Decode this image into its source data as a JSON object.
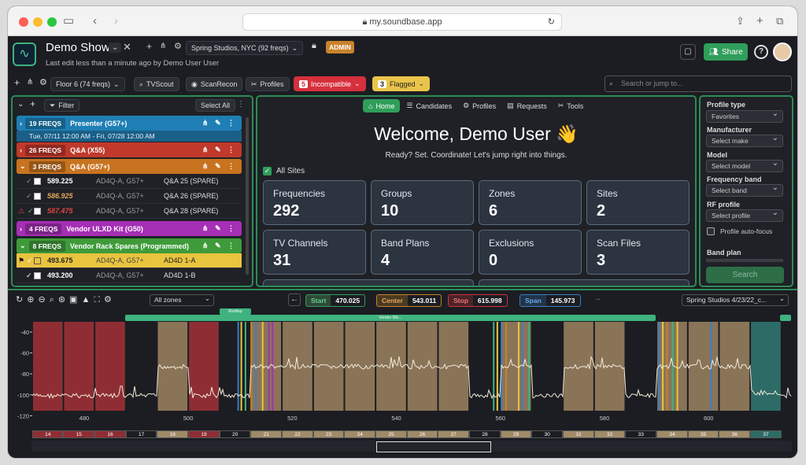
{
  "browser": {
    "url": "my.soundbase.app"
  },
  "app": {
    "title": "Demo Show",
    "subtitle": "Last edit less than a minute ago by Demo User User",
    "venue": "Spring Studios, NYC (92 freqs)",
    "role_badge": "ADMIN",
    "share_label": "Share"
  },
  "toolbar": {
    "floor": "Floor 6 (74 freqs)",
    "tvscout": "TVScout",
    "scanrecon": "ScanRecon",
    "profiles": "Profiles",
    "incompatible_count": "5",
    "incompatible_label": "Incompatible",
    "flagged_count": "3",
    "flagged_label": "Flagged",
    "search_placeholder": "Search or jump to..."
  },
  "freqlist": {
    "filter_label": "Filter",
    "select_all": "Select All",
    "groups": [
      {
        "count": "19 FREQS",
        "name": "Presenter (G57+)",
        "color": "#1f7fb5",
        "sub": "Tue, 07/11 12:00 AM - Fri, 07/28 12:00 AM"
      },
      {
        "count": "26 FREQS",
        "name": "Q&A (X55)",
        "color": "#c0392b"
      },
      {
        "count": "3 FREQS",
        "name": "Q&A (G57+)",
        "color": "#c8731f"
      },
      {
        "count": "4 FREQS",
        "name": "Vendor ULXD Kit (G50)",
        "color": "#a52fb5"
      },
      {
        "count": "8 FREQS",
        "name": "Vendor Rack Spares (Programmed)",
        "color": "#3f9b3a"
      }
    ],
    "rows": [
      {
        "freq": "589.225",
        "model": "AD4Q-A, G57+",
        "name": "Q&A 25 (SPARE)"
      },
      {
        "freq": "586.925",
        "model": "AD4Q-A, G57+",
        "name": "Q&A 26 (SPARE)"
      },
      {
        "freq": "587.475",
        "model": "AD4Q-A, G57+",
        "name": "Q&A 28 (SPARE)"
      },
      {
        "freq": "493.675",
        "model": "AD4Q-A, G57+",
        "name": "AD4D 1-A"
      },
      {
        "freq": "493.200",
        "model": "AD4Q-A, G57+",
        "name": "AD4D 1-B"
      }
    ]
  },
  "home": {
    "tabs": [
      "Home",
      "Candidates",
      "Profiles",
      "Requests",
      "Tools"
    ],
    "welcome": "Welcome, Demo User 👋",
    "tagline": "Ready? Set. Coordinate! Let's jump right into things.",
    "all_sites": "All Sites",
    "tiles": [
      {
        "label": "Frequencies",
        "value": "292"
      },
      {
        "label": "Groups",
        "value": "10"
      },
      {
        "label": "Zones",
        "value": "6"
      },
      {
        "label": "Sites",
        "value": "2"
      },
      {
        "label": "TV Channels",
        "value": "31"
      },
      {
        "label": "Band Plans",
        "value": "4"
      },
      {
        "label": "Exclusions",
        "value": "0"
      },
      {
        "label": "Scan Files",
        "value": "3"
      }
    ]
  },
  "profile_panel": {
    "type_label": "Profile type",
    "type_value": "Favorites",
    "manufacturer_label": "Manufacturer",
    "manufacturer_value": "Select make",
    "model_label": "Model",
    "model_value": "Select model",
    "band_label": "Frequency band",
    "band_value": "Select band",
    "rf_label": "RF profile",
    "rf_value": "Select profile",
    "autofocus": "Profile auto-focus",
    "bandplan": "Band plan",
    "search": "Search"
  },
  "spectrum": {
    "zones": "All zones",
    "start_label": "Start",
    "start": "470.025",
    "center_label": "Center",
    "center": "543.011",
    "stop_label": "Stop",
    "stop": "615.998",
    "span_label": "Span",
    "span": "145.973",
    "scan": "Spring Studios 4/23/22_c...",
    "rooftop": "Rooftop",
    "vendor": "Vendor Mic...",
    "y_ticks": [
      "-40",
      "-60",
      "-80",
      "-100",
      "-120"
    ],
    "x_ticks": [
      "480",
      "500",
      "520",
      "540",
      "560",
      "580",
      "600"
    ],
    "channels": [
      "14",
      "15",
      "16",
      "17",
      "18",
      "19",
      "20",
      "21",
      "22",
      "23",
      "24",
      "25",
      "26",
      "27",
      "28",
      "29",
      "30",
      "31",
      "32",
      "33",
      "34",
      "35",
      "36",
      "37"
    ]
  }
}
